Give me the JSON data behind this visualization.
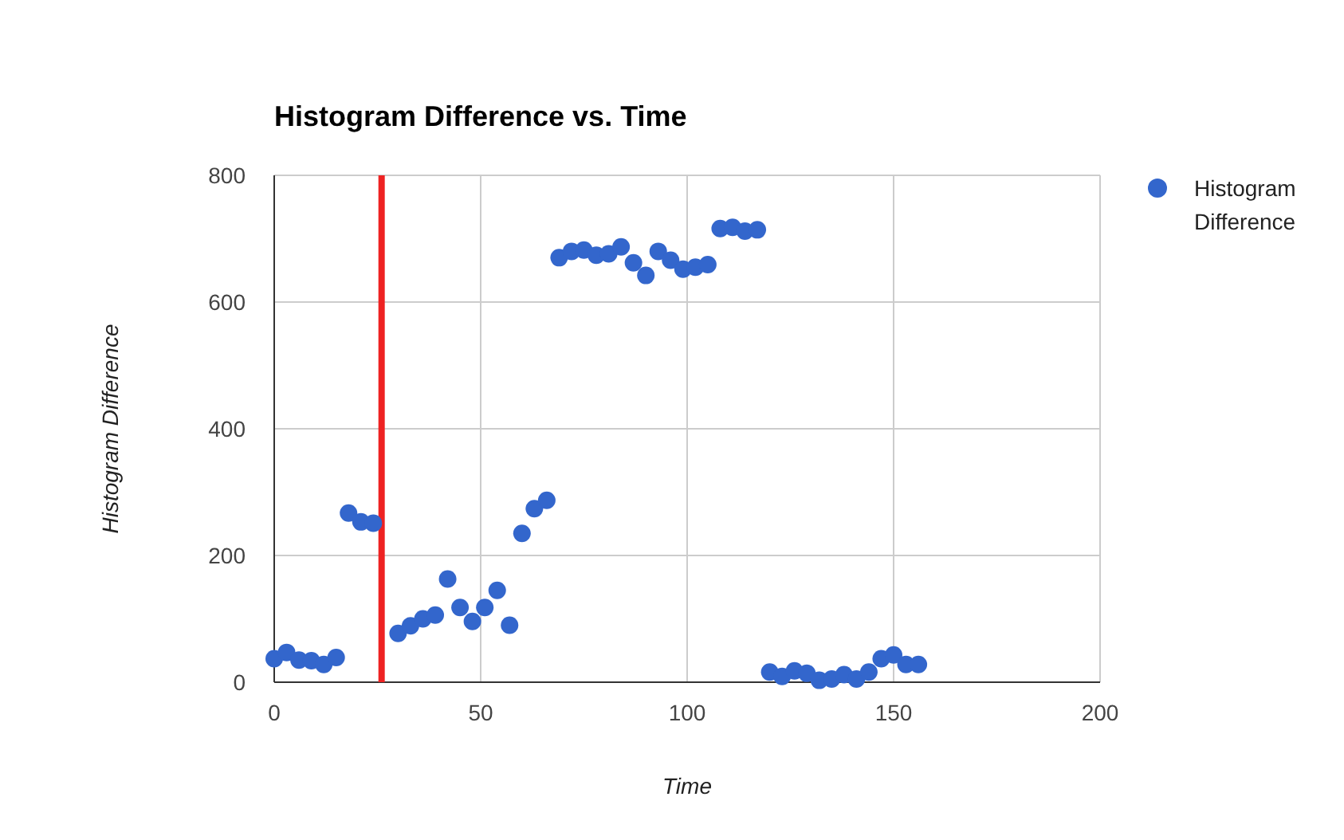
{
  "chart_data": {
    "type": "scatter",
    "title": "Histogram Difference vs. Time",
    "xlabel": "Time",
    "ylabel": "Histogram Difference",
    "x": [
      0,
      3,
      6,
      9,
      12,
      15,
      18,
      21,
      24,
      30,
      33,
      36,
      39,
      42,
      45,
      48,
      51,
      54,
      57,
      60,
      63,
      66,
      69,
      72,
      75,
      78,
      81,
      84,
      87,
      90,
      93,
      96,
      99,
      102,
      105,
      108,
      111,
      114,
      117,
      120,
      123,
      126,
      129,
      132,
      135,
      138,
      141,
      144,
      147,
      150,
      153,
      156
    ],
    "series": [
      {
        "name": "Histogram Difference",
        "color": "#3366cc",
        "values": [
          37,
          47,
          35,
          34,
          28,
          39,
          267,
          253,
          251,
          77,
          89,
          100,
          106,
          163,
          118,
          96,
          118,
          145,
          90,
          235,
          274,
          287,
          670,
          680,
          682,
          674,
          676,
          687,
          662,
          642,
          680,
          666,
          652,
          655,
          659,
          716,
          718,
          712,
          714,
          16,
          9,
          18,
          14,
          3,
          5,
          12,
          5,
          16,
          37,
          43,
          28,
          28
        ]
      }
    ],
    "xlim": [
      0,
      200
    ],
    "xticks": [
      0,
      50,
      100,
      150,
      200
    ],
    "ylim": [
      0,
      800
    ],
    "yticks": [
      0,
      200,
      400,
      600,
      800
    ],
    "grid": true,
    "legend": "top right",
    "marker": "circle",
    "ref_lines": [
      {
        "axis": "x",
        "value": 26,
        "color": "#ee2222"
      }
    ]
  }
}
